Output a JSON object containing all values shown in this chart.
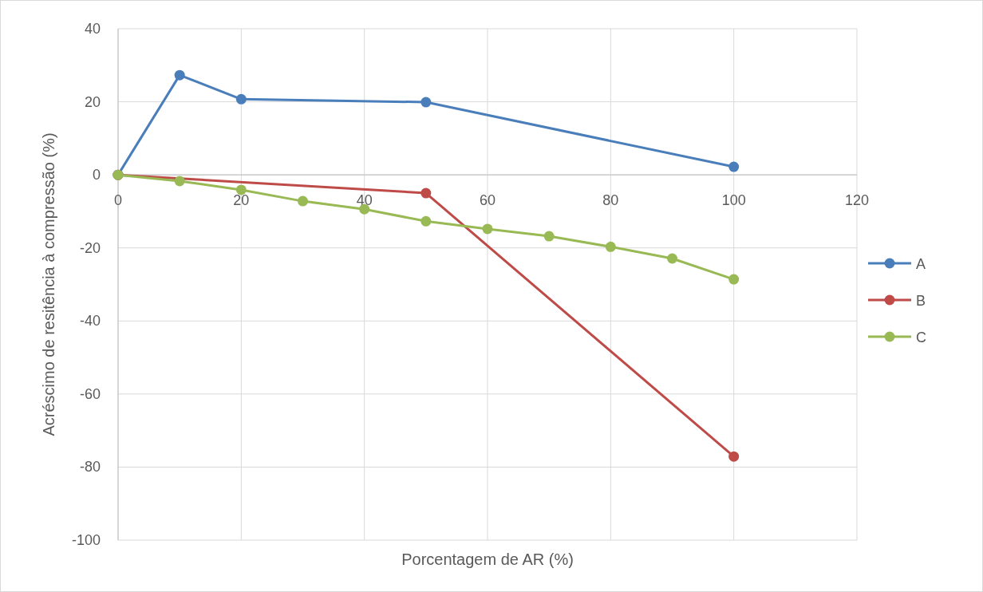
{
  "chart_data": {
    "type": "line",
    "xlabel": "Porcentagem de AR (%)",
    "ylabel": "Acréscimo de resitência  à compressão (%)",
    "xlim": [
      0,
      120
    ],
    "xticks": [
      0,
      20,
      40,
      60,
      80,
      100,
      120
    ],
    "ylim": [
      -100,
      40
    ],
    "yticks": [
      -100,
      -80,
      -60,
      -40,
      -20,
      0,
      20,
      40
    ],
    "grid": true,
    "legend": "right",
    "marker": "circle",
    "line_style": "solid",
    "series": [
      {
        "name": "A",
        "color": "#4a7ebb",
        "x": [
          0,
          10,
          20,
          50,
          100
        ],
        "values": [
          0,
          27.3,
          20.7,
          19.9,
          2.2
        ]
      },
      {
        "name": "B",
        "color": "#be4b48",
        "x": [
          0,
          50,
          100
        ],
        "values": [
          0,
          -5.0,
          -77.1
        ]
      },
      {
        "name": "C",
        "color": "#98b954",
        "x": [
          0,
          10,
          20,
          30,
          40,
          50,
          60,
          70,
          80,
          90,
          100
        ],
        "values": [
          0,
          -1.7,
          -4.1,
          -7.2,
          -9.4,
          -12.7,
          -14.8,
          -16.8,
          -19.7,
          -22.9,
          -28.6
        ]
      }
    ]
  }
}
